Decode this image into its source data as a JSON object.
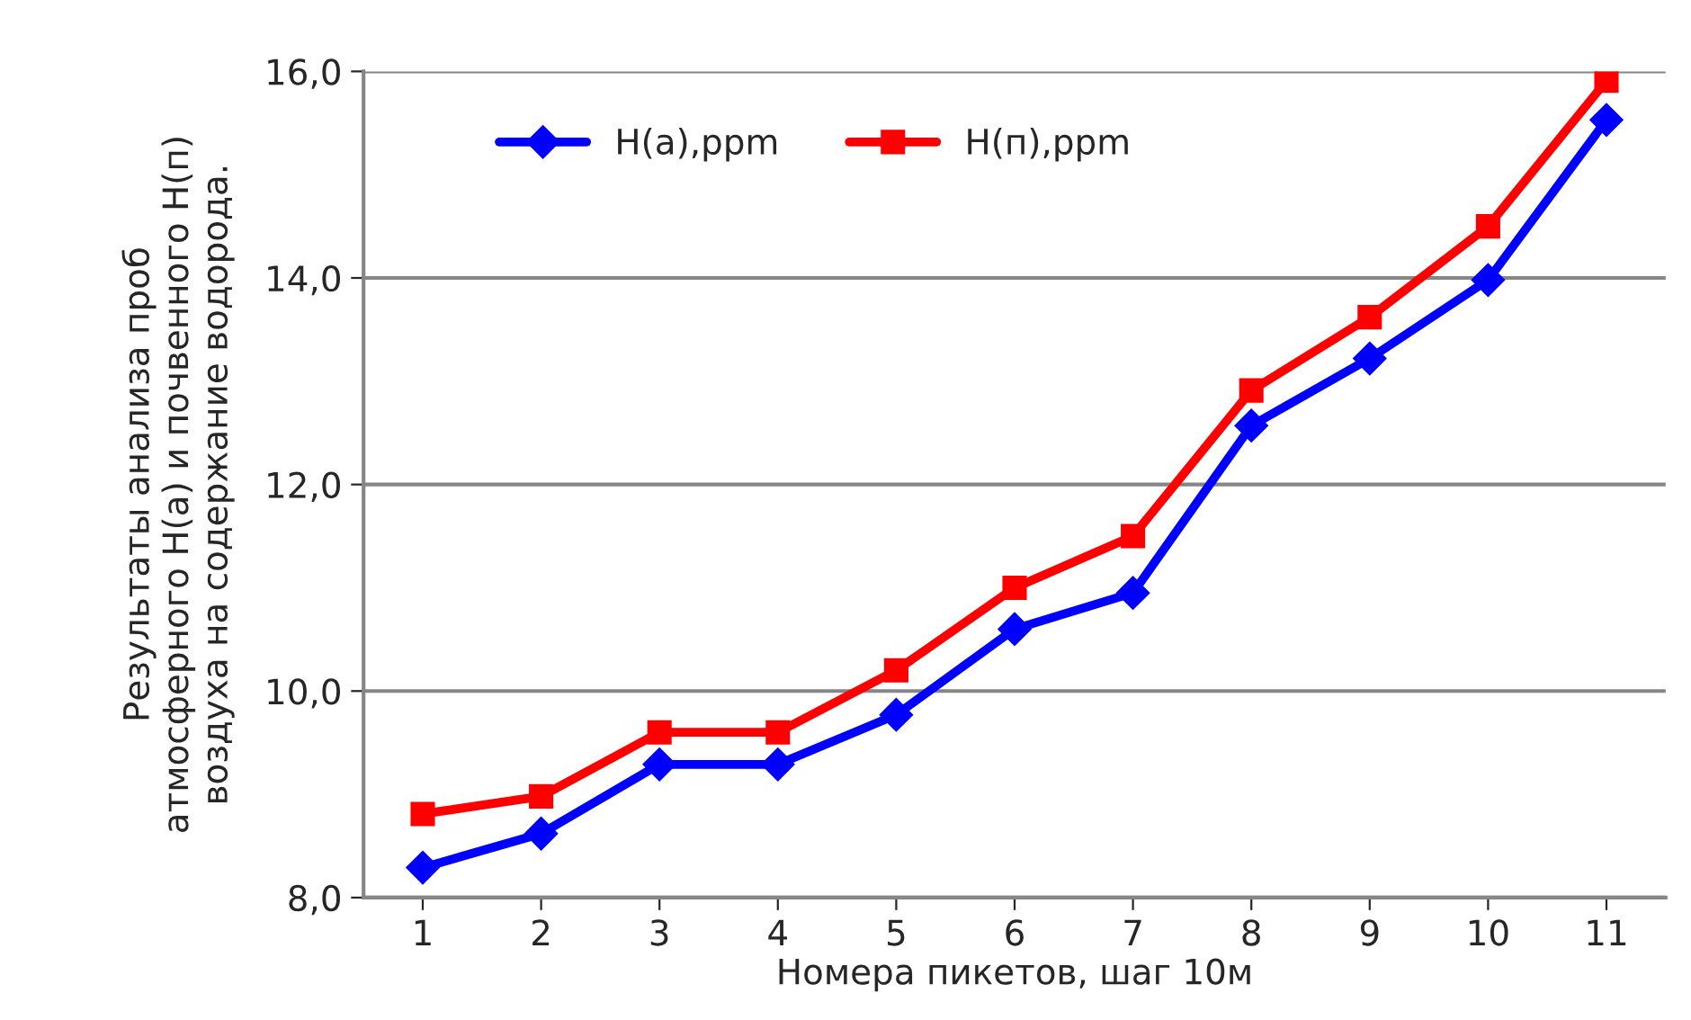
{
  "chart_data": {
    "type": "line",
    "xlabel": "Номера пикетов, шаг 10м",
    "ylabel": "Результаты анализа проб\nатмосферного Н(а) и почвенного Н(п)\nвоздуха на содержание водорода.",
    "categories": [
      "1",
      "2",
      "3",
      "4",
      "5",
      "6",
      "7",
      "8",
      "9",
      "10",
      "11"
    ],
    "series": [
      {
        "name": "Н(а),ppm",
        "color": "#0000ff",
        "marker": "diamond",
        "values": [
          8.29,
          8.62,
          9.29,
          9.29,
          9.77,
          10.6,
          10.95,
          12.57,
          13.22,
          13.98,
          15.53
        ]
      },
      {
        "name": "Н(п),ppm",
        "color": "#ff0000",
        "marker": "square",
        "values": [
          8.81,
          8.98,
          9.6,
          9.6,
          10.2,
          11.0,
          11.5,
          12.91,
          13.62,
          14.5,
          15.91
        ]
      }
    ],
    "ylim": [
      8,
      16
    ],
    "yticks": [
      {
        "value": 8,
        "label": "8,0"
      },
      {
        "value": 10,
        "label": "10,0"
      },
      {
        "value": 12,
        "label": "12,0"
      },
      {
        "value": 14,
        "label": "14,0"
      },
      {
        "value": 16,
        "label": "16,0"
      }
    ],
    "grid": "y",
    "legend": "top left",
    "line_style": "solid"
  }
}
